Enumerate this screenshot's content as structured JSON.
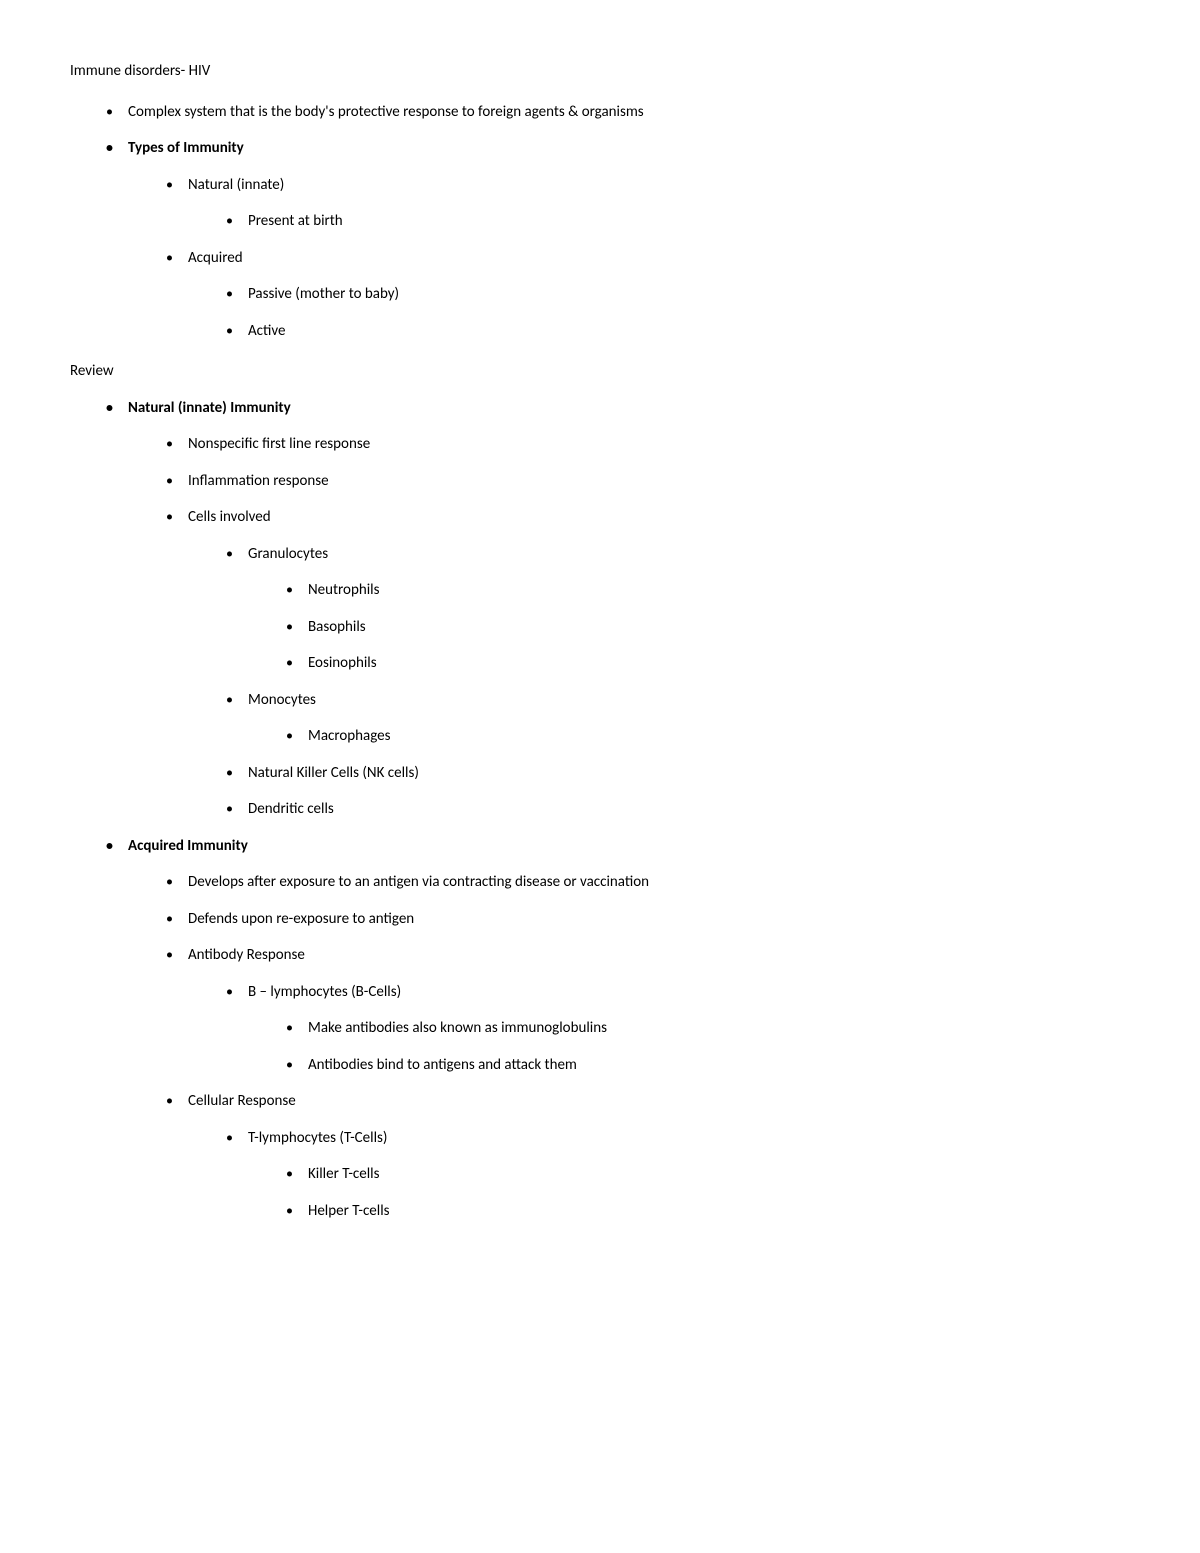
{
  "title": "Immune disorders- HIV",
  "section1": {
    "items": [
      {
        "text": "Complex system that is the body's protective response to foreign agents & organisms",
        "bold": false
      },
      {
        "text": "Types of Immunity",
        "bold": true
      }
    ],
    "types": {
      "natural": "Natural (innate)",
      "natural_sub": "Present at birth",
      "acquired": "Acquired",
      "acquired_passive": "Passive (mother to baby)",
      "acquired_active": "Active"
    }
  },
  "review_label": "Review",
  "natural": {
    "heading": "Natural (innate) Immunity",
    "nonspecific": "Nonspecific first line response",
    "inflammation": "Inflammation response",
    "cells_involved": "Cells involved",
    "granulocytes": "Granulocytes",
    "neutrophils": "Neutrophils",
    "basophils": "Basophils",
    "eosinophils": "Eosinophils",
    "monocytes": "Monocytes",
    "macrophages": "Macrophages",
    "nk": "Natural Killer Cells (NK cells)",
    "dendritic": "Dendritic cells"
  },
  "acquired": {
    "heading": "Acquired Immunity",
    "develops": "Develops after exposure to an antigen via contracting disease or vaccination",
    "defends": "Defends upon re-exposure to antigen",
    "antibody_response": "Antibody Response",
    "bcells": "B – lymphocytes (B-Cells)",
    "make_antibodies": "Make antibodies also known as immunoglobulins",
    "antibodies_bind": "Antibodies bind to antigens and attack them",
    "cellular_response": "Cellular Response",
    "tcells": "T-lymphocytes (T-Cells)",
    "killer_t": "Killer T-cells",
    "helper_t": "Helper T-cells"
  }
}
